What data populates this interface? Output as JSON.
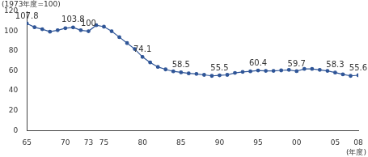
{
  "chart_data": {
    "type": "line",
    "y_label": "(1973年度=100)",
    "x_label": "(年度)",
    "categories": [
      "65",
      null,
      null,
      null,
      null,
      "70",
      null,
      null,
      "73",
      null,
      "75",
      null,
      null,
      null,
      null,
      "80",
      null,
      null,
      null,
      null,
      "85",
      null,
      null,
      null,
      null,
      "90",
      null,
      null,
      null,
      null,
      "95",
      null,
      null,
      null,
      null,
      "00",
      null,
      null,
      null,
      null,
      "05",
      null,
      null,
      "08"
    ],
    "values": [
      107.8,
      104,
      102,
      99.5,
      101,
      103,
      103.8,
      101,
      100,
      106,
      104.5,
      100,
      94,
      88,
      82,
      74.1,
      68.5,
      64,
      61.5,
      59.5,
      58.5,
      57.5,
      57,
      56,
      55,
      55.5,
      56,
      58,
      59,
      59.5,
      60.4,
      60,
      60,
      60.5,
      61,
      59.7,
      62,
      62,
      61,
      60,
      58.3,
      56.5,
      55,
      55.6
    ],
    "value_labels": [
      "107.8",
      null,
      null,
      null,
      null,
      null,
      "103.8",
      null,
      "100",
      null,
      null,
      null,
      null,
      null,
      null,
      "74.1",
      null,
      null,
      null,
      null,
      "58.5",
      null,
      null,
      null,
      null,
      "55.5",
      null,
      null,
      null,
      null,
      "60.4",
      null,
      null,
      null,
      null,
      "59.7",
      null,
      null,
      null,
      null,
      "58.3",
      null,
      null,
      "55.6"
    ],
    "data_labels": true,
    "color": "#2f5597",
    "marker": "circle",
    "ylim": [
      0,
      120
    ],
    "yticks": [
      0,
      20,
      40,
      60,
      80,
      100,
      120
    ],
    "grid": false
  }
}
